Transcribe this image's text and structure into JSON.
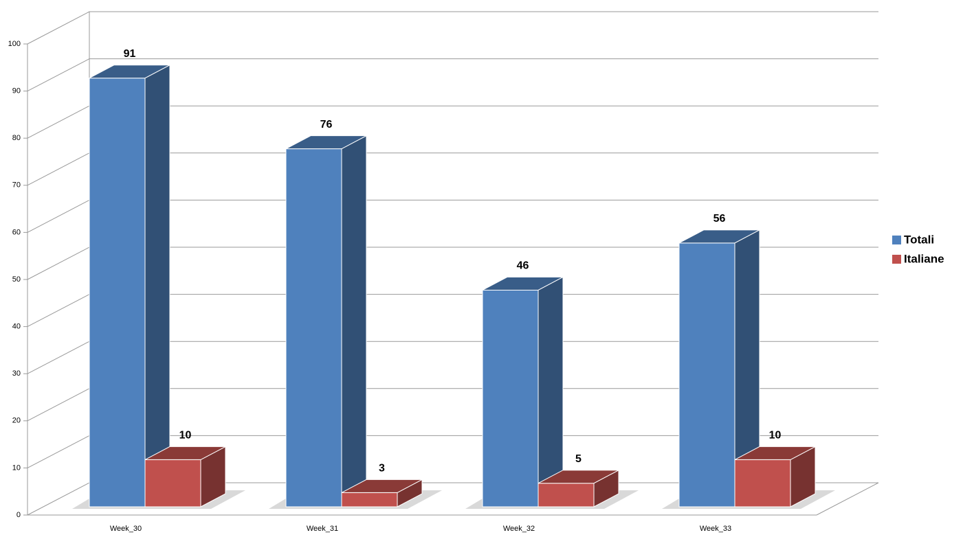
{
  "chart_data": {
    "type": "bar3d",
    "categories": [
      "Week_30",
      "Week_31",
      "Week_32",
      "Week_33"
    ],
    "series": [
      {
        "name": "Totali",
        "color": "#4f81bd",
        "values": [
          91,
          76,
          46,
          56
        ]
      },
      {
        "name": "Italiane",
        "color": "#c0504d",
        "values": [
          10,
          3,
          5,
          10
        ]
      }
    ],
    "ylim": [
      0,
      100
    ],
    "yticks": [
      0,
      10,
      20,
      30,
      40,
      50,
      60,
      70,
      80,
      90,
      100
    ],
    "grid": true,
    "legend": "right"
  }
}
